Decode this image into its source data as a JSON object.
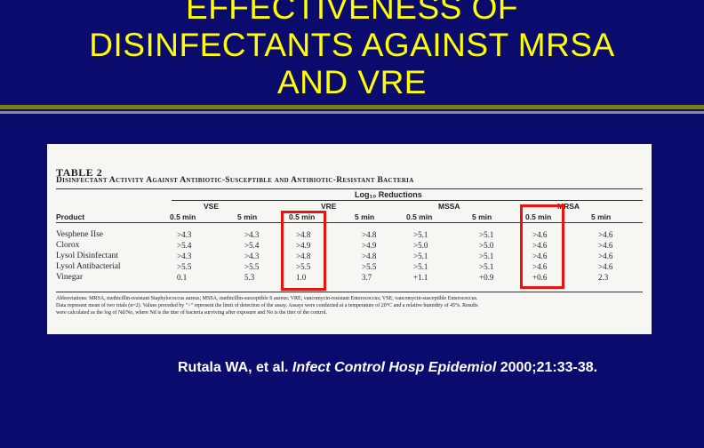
{
  "slide": {
    "title_line1": "EFFECTIVENESS OF",
    "title_line2": "DISINFECTANTS AGAINST MRSA",
    "title_line3": "AND VRE"
  },
  "table": {
    "label": "TABLE 2",
    "caption": "Disinfectant Activity Against Antibiotic-Susceptible and Antibiotic-Resistant Bacteria",
    "log_header": "Log₁₀ Reductions",
    "product_header": "Product",
    "groups": [
      "VSE",
      "VRE",
      "MSSA",
      "MRSA"
    ],
    "time_headers": [
      "0.5 min",
      "5 min",
      "0.5 min",
      "5 min",
      "0.5 min",
      "5 min",
      "0.5 min",
      "5 min"
    ],
    "rows": [
      {
        "product": "Vesphene IIse",
        "values": [
          ">4.3",
          ">4.3",
          ">4.8",
          ">4.8",
          ">5.1",
          ">5.1",
          ">4.6",
          ">4.6"
        ]
      },
      {
        "product": "Clorox",
        "values": [
          ">5.4",
          ">5.4",
          ">4.9",
          ">4.9",
          ">5.0",
          ">5.0",
          ">4.6",
          ">4.6"
        ]
      },
      {
        "product": "Lysol Disinfectant",
        "values": [
          ">4.3",
          ">4.3",
          ">4.8",
          ">4.8",
          ">5.1",
          ">5.1",
          ">4.6",
          ">4.6"
        ]
      },
      {
        "product": "Lysol Antibacterial",
        "values": [
          ">5.5",
          ">5.5",
          ">5.5",
          ">5.5",
          ">5.1",
          ">5.1",
          ">4.6",
          ">4.6"
        ]
      },
      {
        "product": "Vinegar",
        "values": [
          "0.1",
          "5.3",
          "1.0",
          "3.7",
          "+1.1",
          "+0.9",
          "+0.6",
          "2.3"
        ]
      }
    ],
    "footnote_line1": "Abbreviations: MRSA, methicillin-resistant Staphylococcus aureus; MSSA, methicillin-susceptible S aureus; VRE, vancomycin-resistant Enterococcus; VSE, vancomycin-susceptible Enterococcus.",
    "footnote_line2": "Data represent mean of two trials (n=2). Values preceded by \">\" represent the limit of detection of the assay. Assays were conducted at a temperature of 20°C and a relative humidity of 45%. Results",
    "footnote_line3": "were calculated as the log of Nd/No, where Nd is the titer of bacteria surviving after exposure and No is the titer of the control."
  },
  "citation": {
    "authors": "Rutala WA, et al. ",
    "journal": "Infect Control Hosp Epidemiol",
    "details": " 2000;21:33-38."
  },
  "colors": {
    "background": "#0b0b6e",
    "title": "#ffff00",
    "highlight": "#ee1111"
  }
}
